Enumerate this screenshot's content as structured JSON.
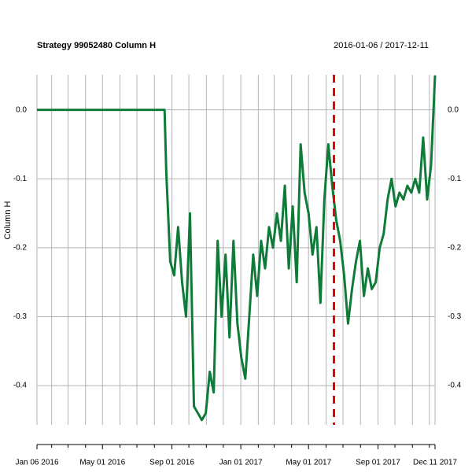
{
  "chart_data": {
    "type": "line",
    "title": "Strategy 99052480 Column H",
    "subtitle": "2016-01-06 / 2017-12-11",
    "y_label": "Column H",
    "color": "#0f7b39",
    "grid": true,
    "vline": {
      "x": "2017-06-15",
      "color": "#e60000"
    },
    "xlim": [
      "2016-01-06",
      "2017-12-11"
    ],
    "xticks": [
      {
        "value": "2016-01-06",
        "label": "Jan 06 2016"
      },
      {
        "value": "2016-05-01",
        "label": "May 01 2016"
      },
      {
        "value": "2016-09-01",
        "label": "Sep 01 2016"
      },
      {
        "value": "2017-01-01",
        "label": "Jan 01 2017"
      },
      {
        "value": "2017-05-01",
        "label": "May 01 2017"
      },
      {
        "value": "2017-09-01",
        "label": "Sep 01 2017"
      },
      {
        "value": "2017-12-11",
        "label": "Dec 11 2017"
      }
    ],
    "xminor": [
      "2016-02-01",
      "2016-03-01",
      "2016-04-01",
      "2016-06-01",
      "2016-07-01",
      "2016-08-01",
      "2016-10-01",
      "2016-11-01",
      "2016-12-01",
      "2017-02-01",
      "2017-03-01",
      "2017-04-01",
      "2017-06-01",
      "2017-07-01",
      "2017-08-01",
      "2017-10-01",
      "2017-11-01",
      "2017-12-01"
    ],
    "ylim": [
      -0.457,
      0.051
    ],
    "yticks": [
      {
        "value": 0,
        "label": "0.0"
      },
      -0.1,
      -0.2,
      -0.3,
      -0.4
    ],
    "x": [
      "2016-01-06",
      "2016-08-19",
      "2016-08-22",
      "2016-08-29",
      "2016-09-05",
      "2016-09-12",
      "2016-09-19",
      "2016-09-26",
      "2016-10-03",
      "2016-10-10",
      "2016-10-17",
      "2016-10-24",
      "2016-10-31",
      "2016-11-07",
      "2016-11-14",
      "2016-11-21",
      "2016-11-28",
      "2016-12-05",
      "2016-12-12",
      "2016-12-19",
      "2016-12-26",
      "2017-01-02",
      "2017-01-09",
      "2017-01-16",
      "2017-01-23",
      "2017-01-30",
      "2017-02-06",
      "2017-02-13",
      "2017-02-20",
      "2017-02-27",
      "2017-03-06",
      "2017-03-13",
      "2017-03-20",
      "2017-03-27",
      "2017-04-03",
      "2017-04-10",
      "2017-04-17",
      "2017-04-24",
      "2017-05-01",
      "2017-05-08",
      "2017-05-15",
      "2017-05-22",
      "2017-05-29",
      "2017-06-05",
      "2017-06-12",
      "2017-06-19",
      "2017-06-26",
      "2017-07-03",
      "2017-07-10",
      "2017-07-17",
      "2017-07-24",
      "2017-07-31",
      "2017-08-07",
      "2017-08-14",
      "2017-08-21",
      "2017-08-28",
      "2017-09-04",
      "2017-09-11",
      "2017-09-18",
      "2017-09-25",
      "2017-10-02",
      "2017-10-09",
      "2017-10-16",
      "2017-10-23",
      "2017-10-30",
      "2017-11-06",
      "2017-11-13",
      "2017-11-20",
      "2017-11-27",
      "2017-12-04",
      "2017-12-11"
    ],
    "values": [
      0,
      0,
      -0.09,
      -0.22,
      -0.24,
      -0.17,
      -0.25,
      -0.3,
      -0.15,
      -0.43,
      -0.44,
      -0.45,
      -0.44,
      -0.38,
      -0.41,
      -0.19,
      -0.3,
      -0.21,
      -0.33,
      -0.19,
      -0.31,
      -0.36,
      -0.39,
      -0.3,
      -0.21,
      -0.27,
      -0.19,
      -0.23,
      -0.17,
      -0.2,
      -0.15,
      -0.19,
      -0.11,
      -0.23,
      -0.14,
      -0.25,
      -0.05,
      -0.12,
      -0.15,
      -0.21,
      -0.17,
      -0.28,
      -0.13,
      -0.05,
      -0.11,
      -0.16,
      -0.19,
      -0.24,
      -0.31,
      -0.26,
      -0.22,
      -0.19,
      -0.27,
      -0.23,
      -0.26,
      -0.25,
      -0.2,
      -0.18,
      -0.13,
      -0.1,
      -0.14,
      -0.12,
      -0.13,
      -0.11,
      -0.12,
      -0.1,
      -0.12,
      -0.04,
      -0.13,
      -0.08,
      0.05
    ]
  }
}
